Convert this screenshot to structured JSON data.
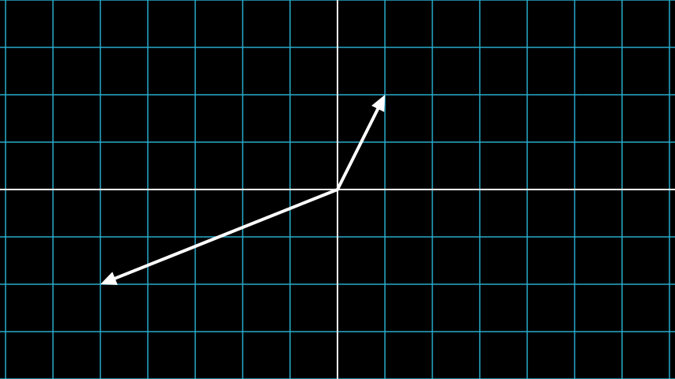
{
  "plane": {
    "background_color": "#000000",
    "grid_color": "#29abca",
    "axis_color": "#ffffff",
    "x_range": [
      -7,
      7
    ],
    "y_range": [
      -4,
      4
    ],
    "grid_step": 1
  },
  "vectors": [
    {
      "id": "vector-a",
      "x": 1,
      "y": 2,
      "color": "#ffffff"
    },
    {
      "id": "vector-b",
      "x": -5,
      "y": -2,
      "color": "#ffffff"
    }
  ]
}
